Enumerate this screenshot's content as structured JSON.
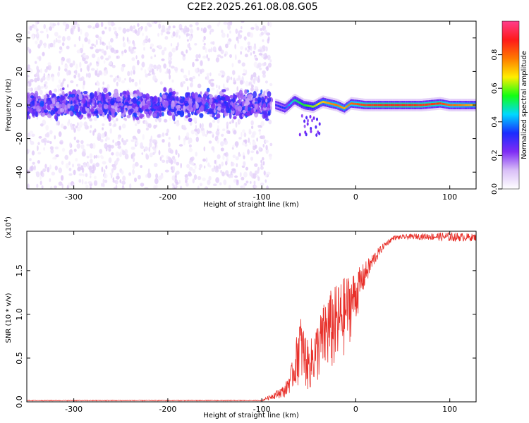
{
  "title": "C2E2.2025.261.08.08.G05",
  "chart_data": [
    {
      "type": "heatmap",
      "panel": "spectrogram",
      "xlabel": "Height of straight line (km)",
      "ylabel": "Frequency (Hz)",
      "xlim": [
        -350,
        128
      ],
      "ylim": [
        -50,
        50
      ],
      "xticks": [
        -300,
        -200,
        -100,
        0,
        100
      ],
      "xtick_labels": [
        "-300",
        "-200",
        "-100",
        "0",
        "100"
      ],
      "yticks": [
        -40,
        -20,
        0,
        20,
        40
      ],
      "ytick_labels": [
        "-40",
        "-20",
        "0",
        "20",
        "40"
      ],
      "colorbar": {
        "label": "Normalized spectral amplitude",
        "range": [
          0,
          1
        ],
        "ticks": [
          0.0,
          0.2,
          0.4,
          0.6,
          0.8
        ],
        "tick_labels": [
          "0.0",
          "0.2",
          "0.4",
          "0.6",
          "0.8"
        ],
        "colors": [
          "#ffffff",
          "#d9bff7",
          "#7f2cf5",
          "#1a2cff",
          "#00d8ff",
          "#13ff13",
          "#ffee00",
          "#ff7a00",
          "#ff1a1a",
          "#ff3e8c"
        ]
      },
      "features": [
        {
          "region": "scattered noise",
          "x_range": [
            -350,
            -90
          ],
          "freq_range": [
            -50,
            50
          ],
          "amplitude": 0.05
        },
        {
          "region": "noisy band",
          "x_range": [
            -350,
            -90
          ],
          "freq_range": [
            -10,
            10
          ],
          "amplitude": 0.2
        },
        {
          "region": "tracked tone",
          "x_range": [
            -85,
            128
          ],
          "center_freq": 0,
          "amplitude": 0.9
        }
      ],
      "ridge": {
        "x": [
          -85,
          -75,
          -65,
          -55,
          -45,
          -35,
          -28,
          -20,
          -12,
          -5,
          10,
          30,
          50,
          70,
          90,
          100,
          110,
          128
        ],
        "freq": [
          0,
          -2,
          3,
          0,
          -1,
          2,
          1,
          0,
          -2,
          1,
          0,
          0,
          0,
          0,
          1,
          0,
          0,
          0
        ],
        "amplitude": [
          0.3,
          0.35,
          0.5,
          0.55,
          0.62,
          0.7,
          0.75,
          0.78,
          0.72,
          0.8,
          0.85,
          0.88,
          0.88,
          0.86,
          0.85,
          0.8,
          0.78,
          0.7
        ]
      }
    },
    {
      "type": "line",
      "panel": "snr",
      "xlabel": "Height of straight line (km)",
      "ylabel": "SNR (10 * v/v)",
      "y_multiplier": "(x10",
      "y_exponent": "4",
      "xlim": [
        -350,
        128
      ],
      "ylim": [
        0,
        1.95
      ],
      "xticks": [
        -300,
        -200,
        -100,
        0,
        100
      ],
      "xtick_labels": [
        "-300",
        "-200",
        "-100",
        "0",
        "100"
      ],
      "yticks": [
        0,
        0.5,
        1.0,
        1.5
      ],
      "ytick_labels": [
        "0.0",
        "0.5",
        "1.0",
        "1.5"
      ],
      "color": "#e8302a",
      "series": [
        {
          "name": "SNR",
          "x": [
            -350,
            -100,
            -75,
            -65,
            -60,
            -50,
            -40,
            -30,
            -20,
            -10,
            0,
            10,
            20,
            30,
            40,
            60,
            80,
            100,
            128
          ],
          "low": [
            0.01,
            0.01,
            0.05,
            0.15,
            0.2,
            0.1,
            0.2,
            0.3,
            0.3,
            0.55,
            0.9,
            1.3,
            1.55,
            1.75,
            1.85,
            1.86,
            1.85,
            1.83,
            1.84
          ],
          "high": [
            0.02,
            0.02,
            0.2,
            0.55,
            1.05,
            0.65,
            0.95,
            1.25,
            1.35,
            1.45,
            1.5,
            1.6,
            1.72,
            1.82,
            1.9,
            1.92,
            1.93,
            1.94,
            1.92
          ]
        }
      ]
    }
  ]
}
